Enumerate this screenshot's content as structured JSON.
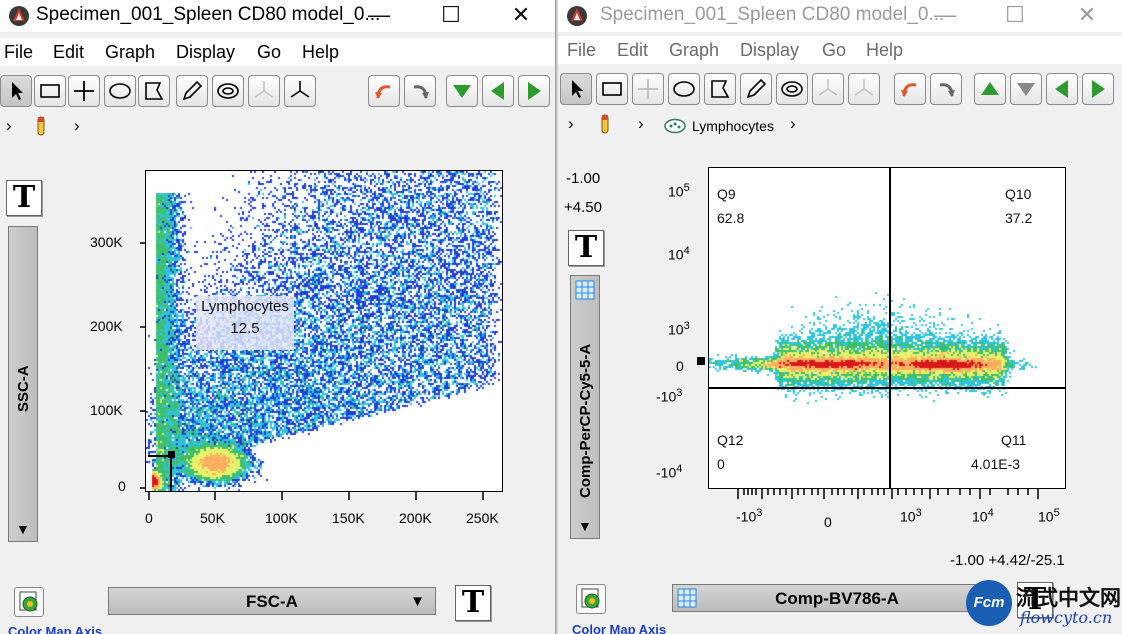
{
  "left_window": {
    "title": "Specimen_001_Spleen CD80 model_0...",
    "menu": [
      "File",
      "Edit",
      "Graph",
      "Display",
      "Go",
      "Help"
    ],
    "controls": {
      "minimize": "—",
      "maximize": "☐",
      "close": "✕"
    },
    "breadcrumb": {
      "arrow1": "›",
      "arrow2": "›"
    },
    "text_button": "T",
    "y_axis": {
      "param": "SSC-A",
      "ticks": [
        "300K",
        "200K",
        "100K",
        "0"
      ]
    },
    "x_axis": {
      "param": "FSC-A",
      "ticks": [
        "0",
        "50K",
        "100K",
        "150K",
        "200K",
        "250K"
      ],
      "dropdown_arrow": "▼"
    },
    "gate": {
      "name": "Lymphocytes",
      "value": "12.5"
    },
    "bottom_link": "Color Map Axis"
  },
  "right_window": {
    "title": "Specimen_001_Spleen CD80 model_0...",
    "menu": [
      "File",
      "Edit",
      "Graph",
      "Display",
      "Go",
      "Help"
    ],
    "controls": {
      "minimize": "—",
      "maximize": "☐",
      "close": "✕"
    },
    "breadcrumb": {
      "arrow1": "›",
      "arrow2": "›",
      "gate_name": "Lymphocytes",
      "arrow3": "›"
    },
    "readouts": {
      "top1": "-1.00",
      "top2": "+4.50",
      "bottom": "-1.00 +4.42/-25.1"
    },
    "text_button": "T",
    "y_axis": {
      "param": "Comp-PerCP-Cy5-5-A",
      "ticks": [
        {
          "base": "10",
          "exp": "5"
        },
        {
          "base": "10",
          "exp": "4"
        },
        {
          "base": "10",
          "exp": "3"
        },
        {
          "base": "0",
          "exp": ""
        },
        {
          "base": "-10",
          "exp": "3"
        },
        {
          "base": "-10",
          "exp": "4"
        }
      ]
    },
    "x_axis": {
      "param": "Comp-BV786-A",
      "ticks": [
        {
          "base": "-10",
          "exp": "3"
        },
        {
          "base": "0",
          "exp": ""
        },
        {
          "base": "10",
          "exp": "3"
        },
        {
          "base": "10",
          "exp": "4"
        },
        {
          "base": "10",
          "exp": "5"
        }
      ]
    },
    "quadrants": [
      {
        "name": "Q9",
        "value": "62.8"
      },
      {
        "name": "Q10",
        "value": "37.2"
      },
      {
        "name": "Q11",
        "value": "4.01E-3"
      },
      {
        "name": "Q12",
        "value": "0"
      }
    ],
    "bottom_link": "Color Map Axis"
  },
  "watermark": {
    "cn": "流式中文网",
    "url": "flowcyto.cn",
    "badge": "Fcm"
  },
  "colors": {
    "gate_green": "#2e9b2e",
    "arrow_orange": "#e4572e",
    "link_blue": "#1a3fc4"
  }
}
